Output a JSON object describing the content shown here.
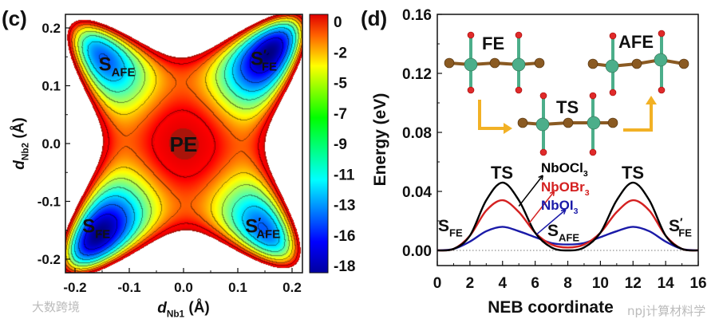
{
  "chart_data": [
    {
      "panel": "(c)",
      "type": "heatmap",
      "subtype": "contour",
      "xlabel": "d",
      "xlabel_sub": "Nb1",
      "xlabel_unit": " (Å)",
      "ylabel": "d",
      "ylabel_sub": "Nb2",
      "ylabel_unit": " (Å)",
      "xlim": [
        -0.22,
        0.22
      ],
      "ylim": [
        -0.22,
        0.22
      ],
      "xticks": [
        "-0.2",
        "-0.1",
        "0.0",
        "0.1",
        "0.2"
      ],
      "yticks": [
        "-0.2",
        "-0.1",
        "0.0",
        "0.1",
        "0.2"
      ],
      "colorbar": {
        "ticks": [
          "0",
          "-2",
          "-5",
          "-7",
          "-9",
          "-11",
          "-13",
          "-16",
          "-18"
        ],
        "range": [
          -18,
          0
        ],
        "colormap": "jet"
      },
      "annotations": [
        {
          "main": "S",
          "sub": "AFE",
          "prime": false,
          "x": -0.13,
          "y": 0.14
        },
        {
          "main": "S",
          "sub": "FE",
          "prime": true,
          "x": 0.15,
          "y": 0.15
        },
        {
          "main": "PE",
          "sub": "",
          "prime": false,
          "x": 0.0,
          "y": 0.0
        },
        {
          "main": "S",
          "sub": "FE",
          "prime": false,
          "x": -0.16,
          "y": -0.14
        },
        {
          "main": "S",
          "sub": "AFE",
          "prime": true,
          "x": 0.14,
          "y": -0.14
        }
      ],
      "minima": {
        "FE": -18,
        "AFE": -14
      }
    },
    {
      "panel": "(d)",
      "type": "line",
      "xlabel": "NEB coordinate",
      "ylabel": "Energy (eV)",
      "xlim": [
        0,
        16
      ],
      "ylim": [
        -0.01,
        0.16
      ],
      "xticks": [
        "0",
        "2",
        "4",
        "6",
        "8",
        "10",
        "12",
        "14",
        "16"
      ],
      "yticks": [
        "0.00",
        "0.04",
        "0.08",
        "0.12",
        "0.16"
      ],
      "x": [
        0,
        1,
        2,
        3,
        4,
        5,
        6,
        7,
        8,
        9,
        10,
        11,
        12,
        13,
        14,
        15,
        16
      ],
      "series": [
        {
          "name": "NbOCl",
          "sub": "3",
          "color": "#000000",
          "values": [
            0,
            0.001,
            0.01,
            0.034,
            0.046,
            0.034,
            0.012,
            0.002,
            0,
            0.002,
            0.012,
            0.034,
            0.046,
            0.034,
            0.01,
            0.001,
            0
          ]
        },
        {
          "name": "NbOBr",
          "sub": "3",
          "color": "#d42020",
          "values": [
            0,
            0.001,
            0.01,
            0.027,
            0.034,
            0.026,
            0.012,
            0.004,
            0.002,
            0.004,
            0.012,
            0.026,
            0.034,
            0.027,
            0.01,
            0.001,
            0
          ]
        },
        {
          "name": "NbOI",
          "sub": "3",
          "color": "#1a1aa8",
          "values": [
            0,
            0.001,
            0.006,
            0.013,
            0.016,
            0.013,
            0.009,
            0.005,
            0.004,
            0.005,
            0.009,
            0.013,
            0.016,
            0.013,
            0.006,
            0.001,
            0
          ]
        }
      ],
      "annotations": [
        {
          "main": "TS",
          "sub": "",
          "prime": false
        },
        {
          "main": "TS",
          "sub": "",
          "prime": false
        },
        {
          "main": "S",
          "sub": "FE",
          "prime": false
        },
        {
          "main": "S",
          "sub": "AFE",
          "prime": false
        },
        {
          "main": "S",
          "sub": "FE",
          "prime": true
        }
      ],
      "insets": {
        "fe": "FE",
        "afe": "AFE",
        "ts": "TS"
      },
      "colors": {
        "nb": "#4cae8a",
        "o": "#e02a2a",
        "halogen": "#8a5a22",
        "arrow": "#f2b125"
      }
    }
  ],
  "watermarks": {
    "left": "大数跨境",
    "right": "npj计算材料学"
  }
}
